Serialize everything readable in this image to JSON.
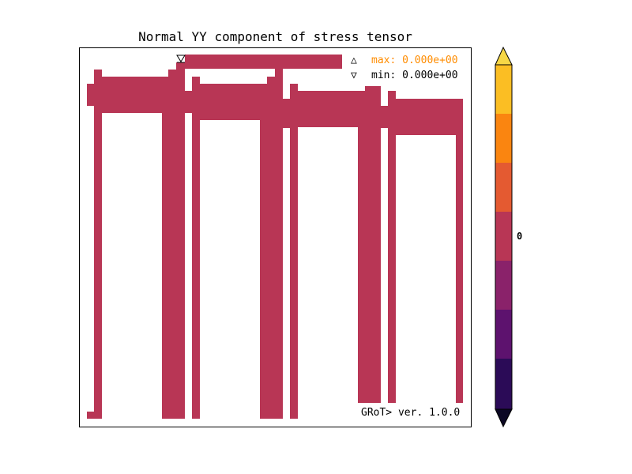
{
  "title": "Normal YY component of stress tensor",
  "legend": {
    "max_symbol": "△",
    "max_label": "max:",
    "max_value": "0.000e+00",
    "max_color": "#ff8c00",
    "min_symbol": "▽",
    "min_label": "min:",
    "min_value": "0.000e+00",
    "min_color": "#000000"
  },
  "version": "GRoT> ver. 1.0.0",
  "field_color": "#b83655",
  "colorbar": {
    "tick_label": "0",
    "colors_top_to_bottom": [
      "#f6d746",
      "#fbbe23",
      "#fa8510",
      "#e45a31",
      "#b83655",
      "#8a226a",
      "#5d126e",
      "#2b0b57",
      "#0b0724"
    ]
  }
}
